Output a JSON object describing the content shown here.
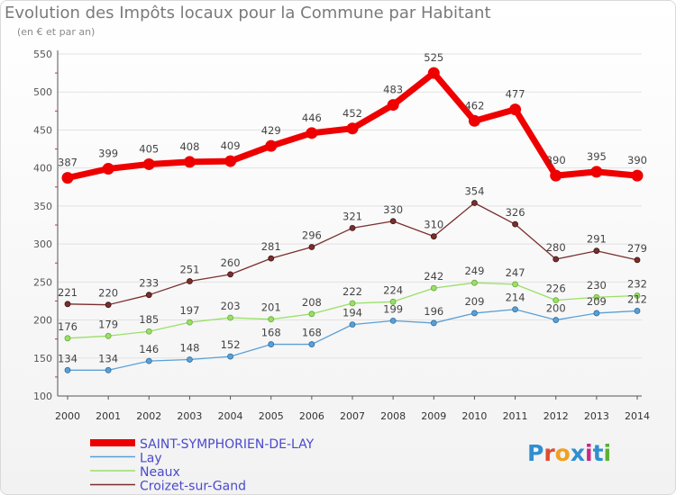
{
  "title": "Evolution des Impôts locaux pour la Commune par Habitant",
  "subtitle": "(en € et par an)",
  "logo": {
    "text": "Proxiti",
    "colors": [
      "#2f8fd0",
      "#e04a2e",
      "#f0a020",
      "#2f8fd0",
      "#c72a86",
      "#2f8fd0",
      "#5bb030"
    ]
  },
  "chart_data": {
    "type": "line",
    "title": "Evolution des Impôts locaux pour la Commune par Habitant",
    "subtitle": "(en € et par an)",
    "xlabel": "",
    "ylabel": "",
    "ylim": [
      100,
      550
    ],
    "yticks": [
      100,
      150,
      200,
      250,
      300,
      350,
      400,
      450,
      500,
      550
    ],
    "x": [
      "2000",
      "2001",
      "2002",
      "2003",
      "2004",
      "2005",
      "2006",
      "2007",
      "2008",
      "2009",
      "2010",
      "2011",
      "2012",
      "2013",
      "2014"
    ],
    "series": [
      {
        "name": "SAINT-SYMPHORIEN-DE-LAY",
        "color": "#ee0000",
        "values": [
          387,
          399,
          405,
          408,
          409,
          429,
          446,
          452,
          483,
          525,
          462,
          477,
          390,
          395,
          390
        ]
      },
      {
        "name": "Lay",
        "color": "#5aa0d6",
        "values": [
          134,
          134,
          146,
          148,
          152,
          168,
          168,
          194,
          199,
          196,
          209,
          214,
          200,
          209,
          212
        ]
      },
      {
        "name": "Neaux",
        "color": "#99e066",
        "values": [
          176,
          179,
          185,
          197,
          203,
          201,
          208,
          222,
          224,
          242,
          249,
          247,
          226,
          230,
          232
        ]
      },
      {
        "name": "Croizet-sur-Gand",
        "color": "#7a2e2e",
        "values": [
          221,
          220,
          233,
          251,
          260,
          281,
          296,
          321,
          330,
          310,
          354,
          326,
          280,
          291,
          279
        ]
      }
    ],
    "legend_position": "bottom-left"
  }
}
